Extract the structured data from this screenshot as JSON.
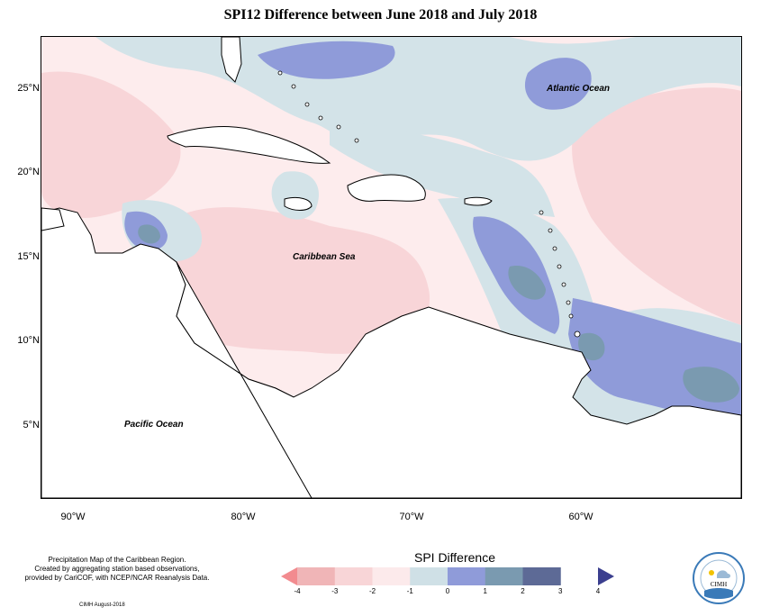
{
  "title": "SPI12 Difference between June 2018 and July 2018",
  "map": {
    "lat_labels": [
      "25°N",
      "20°N",
      "15°N",
      "10°N",
      "5°N"
    ],
    "lon_labels": [
      "90°W",
      "80°W",
      "70°W",
      "60°W"
    ],
    "oceans": {
      "atlantic": "Atlantic Ocean",
      "caribbean": "Caribbean Sea",
      "pacific": "Pacific Ocean"
    }
  },
  "legend": {
    "title": "SPI Difference",
    "ticks": [
      "-4",
      "-3",
      "-2",
      "-1",
      "0",
      "1",
      "2",
      "3",
      "4"
    ],
    "colors": [
      "#f28b8f",
      "#f0b5b7",
      "#f8d5d7",
      "#fceaeb",
      "#cfe0e6",
      "#8f9bd9",
      "#7a9ab0",
      "#5d6a96",
      "#3b3f8f"
    ]
  },
  "footer": {
    "note_lines": [
      "Precipitation Map of the Caribbean Region.",
      "Created by aggregating station based observations,",
      "provided by CariCOF, with NCEP/NCAR Reanalysis Data."
    ],
    "credit": "CIMH August-2018",
    "logo_text": "CIMH"
  }
}
